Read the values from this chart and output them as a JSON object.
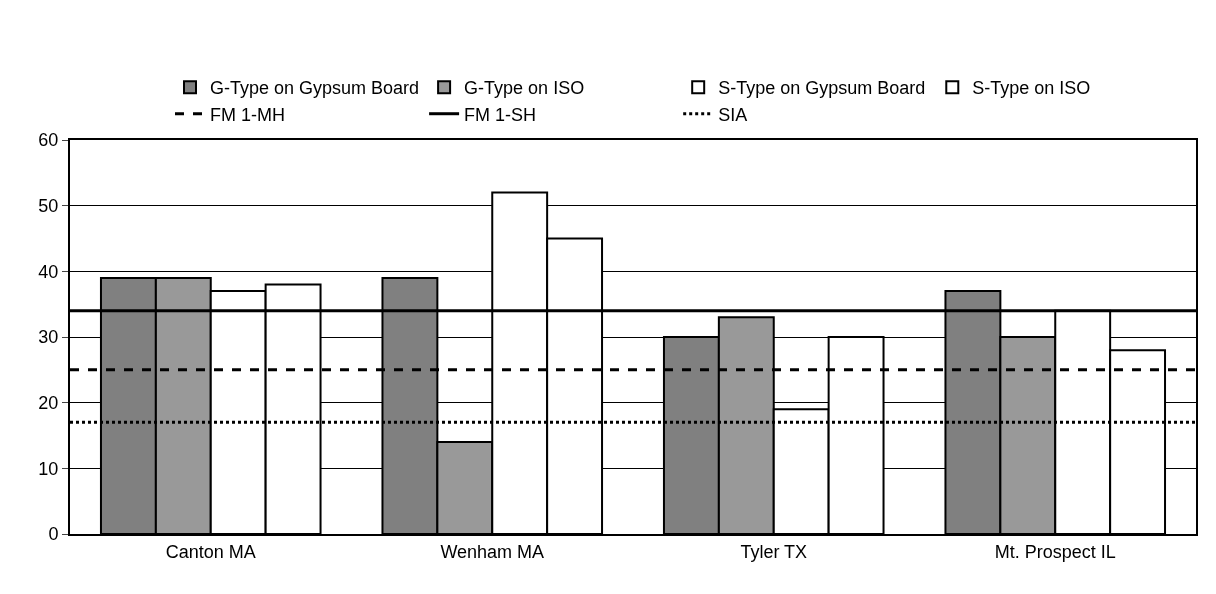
{
  "chart_data": {
    "type": "bar",
    "categories": [
      "Canton MA",
      "Wenham MA",
      "Tyler TX",
      "Mt. Prospect IL"
    ],
    "series": [
      {
        "name": "G-Type on Gypsum Board",
        "color": "#808080",
        "values": [
          39,
          39,
          30,
          37
        ]
      },
      {
        "name": "G-Type on ISO",
        "color": "#999999",
        "values": [
          39,
          14,
          33,
          30
        ]
      },
      {
        "name": "S-Type on Gypsum Board",
        "color": "#ffffff",
        "values": [
          37,
          52,
          19,
          34
        ]
      },
      {
        "name": "S-Type on ISO",
        "color": "#ffffff",
        "values": [
          38,
          45,
          30,
          28
        ]
      }
    ],
    "ref_lines": [
      {
        "axis": "y",
        "value": 25,
        "label": "FM 1-MH",
        "line_style": "dashed",
        "color": "#000000"
      },
      {
        "axis": "y",
        "value": 34,
        "label": "FM 1-SH",
        "line_style": "solid",
        "color": "#000000"
      },
      {
        "axis": "y",
        "value": 17,
        "label": "SIA",
        "line_style": "dotted",
        "color": "#000000"
      }
    ],
    "ylim": [
      0,
      60
    ],
    "yticks": [
      0,
      10,
      20,
      30,
      40,
      50,
      60
    ],
    "grid": "y",
    "legend": "top"
  }
}
